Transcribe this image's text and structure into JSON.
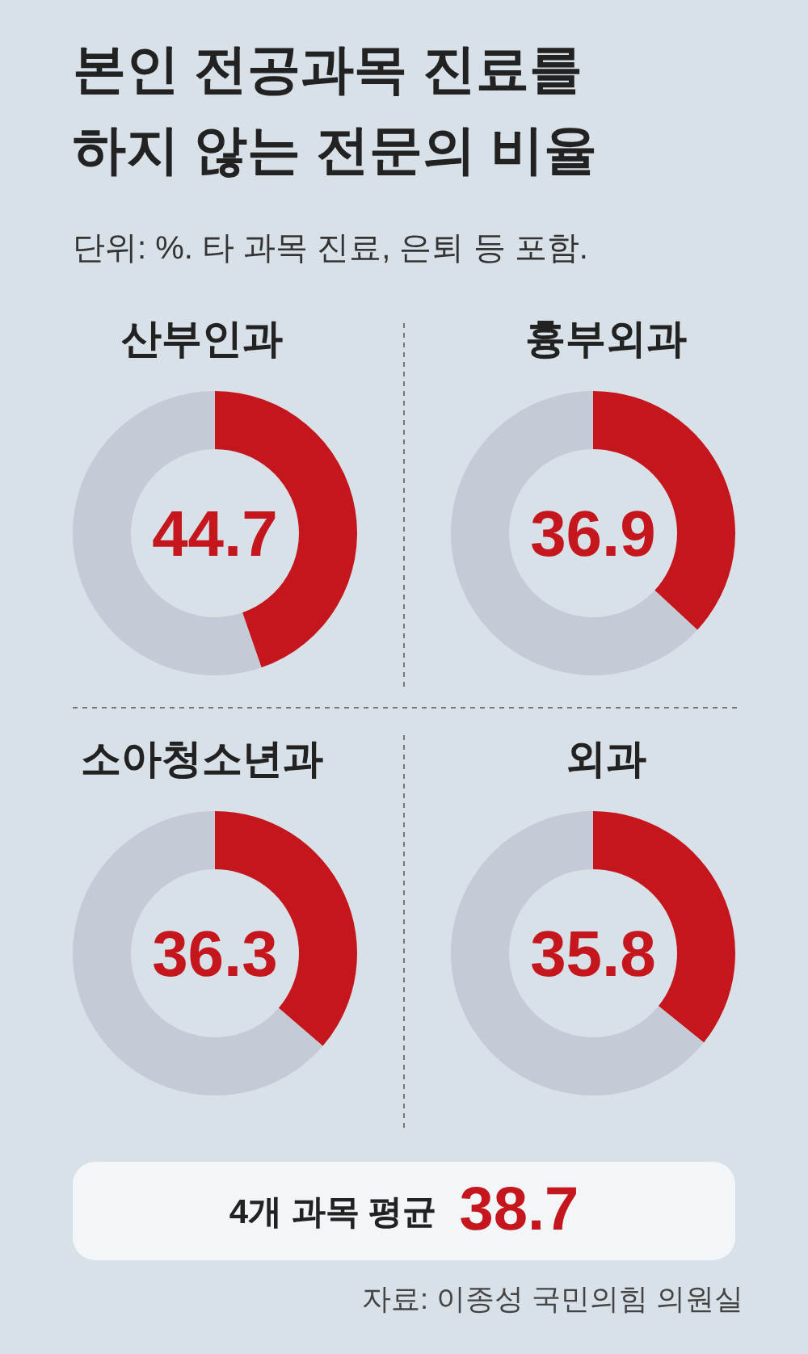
{
  "chart_data": [
    {
      "type": "other",
      "title": "본인 전공과목 진료를 하지 않는 전문의 비율",
      "subtitle": "단위: %. 타 과목 진료, 은퇴 등 포함."
    },
    {
      "type": "donut",
      "title": "산부인과",
      "categories": [
        null,
        null
      ],
      "values": [
        44.7,
        55.3
      ],
      "colors": [
        "#c4161c",
        "#c5cbd6"
      ],
      "annotations": [
        "44.7"
      ]
    },
    {
      "type": "donut",
      "title": "흉부외과",
      "categories": [
        null,
        null
      ],
      "values": [
        36.9,
        63.1
      ],
      "colors": [
        "#c4161c",
        "#c5cbd6"
      ],
      "annotations": [
        "36.9"
      ]
    },
    {
      "type": "donut",
      "title": "소아청소년과",
      "categories": [
        null,
        null
      ],
      "values": [
        36.3,
        63.7
      ],
      "colors": [
        "#c4161c",
        "#c5cbd6"
      ],
      "annotations": [
        "36.3"
      ]
    },
    {
      "type": "donut",
      "title": "외과",
      "categories": [
        null,
        null
      ],
      "values": [
        35.8,
        64.2
      ],
      "colors": [
        "#c4161c",
        "#c5cbd6"
      ],
      "annotations": [
        "35.8"
      ]
    },
    {
      "type": "other",
      "annotations": [
        "4개 과목 평균",
        "38.7",
        "자료: 이종성 국민의힘 의원실"
      ]
    }
  ]
}
